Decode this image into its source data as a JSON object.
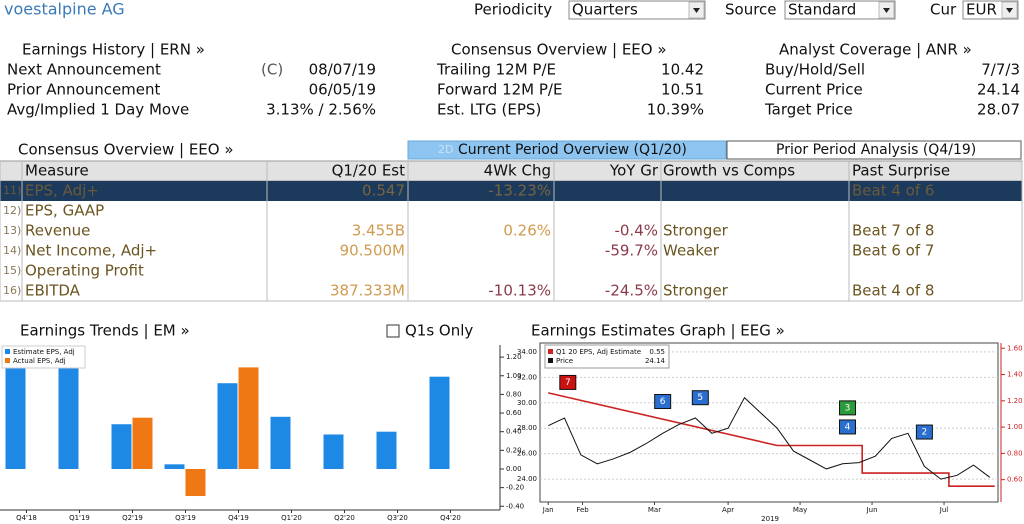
{
  "header": {
    "company": "voestalpine AG",
    "periodicity_label": "Periodicity",
    "periodicity": "Quarters",
    "source_label": "Source",
    "source": "Standard",
    "cur_label": "Cur",
    "cur": "EUR"
  },
  "panels": [
    {
      "title": "Earnings History | ERN »",
      "rows": [
        [
          "Next Announcement",
          "(C)",
          "08/07/19"
        ],
        [
          "Prior Announcement",
          "06/05/19"
        ],
        [
          "Avg/Implied 1 Day Move",
          "3.13% / 2.56%"
        ]
      ]
    },
    {
      "title": "Consensus Overview | EEO »",
      "rows": [
        [
          "Trailing 12M P/E",
          "10.42"
        ],
        [
          "Forward 12M P/E",
          "10.51"
        ],
        [
          "Est. LTG (EPS)",
          "10.39%"
        ]
      ]
    },
    {
      "title": "Analyst Coverage | ANR »",
      "rows": [
        [
          "Buy/Hold/Sell",
          "7/7/3"
        ],
        [
          "Current Price",
          "24.14"
        ],
        [
          "Target Price",
          "28.07"
        ]
      ]
    }
  ],
  "table": {
    "title": "Consensus Overview | EEO »",
    "tab_prefix": "2D",
    "tabs": [
      "Current Period Overview (Q1/20)",
      "Prior Period Analysis (Q4/19)"
    ],
    "columns": [
      "Measure",
      "Q1/20 Est",
      "4Wk Chg",
      "YoY Gr",
      "Growth vs Comps",
      "Past Surprise"
    ],
    "rows": [
      [
        "11)",
        "EPS, Adj+",
        "0.547",
        "-13.23%",
        null,
        null,
        "Beat 4 of 6"
      ],
      [
        "12)",
        "EPS, GAAP",
        null,
        null,
        null,
        null,
        null
      ],
      [
        "13)",
        "Revenue",
        "3.455B",
        "0.26%",
        "-0.4%",
        "Stronger",
        "Beat 7 of 8"
      ],
      [
        "14)",
        "Net Income, Adj+",
        "90.500M",
        null,
        "-59.7%",
        "Weaker",
        "Beat 6 of 7"
      ],
      [
        "15)",
        "Operating Profit",
        null,
        null,
        null,
        null,
        null
      ],
      [
        "16)",
        "EBITDA",
        "387.333M",
        "-10.13%",
        "-24.5%",
        "Stronger",
        "Beat 4 of 8"
      ]
    ]
  },
  "chart_data": [
    {
      "type": "bar",
      "title": "Earnings Trends | EM »",
      "checkbox": "Q1s Only",
      "categories": [
        "Q4'18",
        "Q1'19",
        "Q2'19",
        "Q3'19",
        "Q4'19",
        "Q1'20",
        "Q2'20",
        "Q3'20",
        "Q4'20"
      ],
      "series": [
        {
          "name": "Estimate EPS, Adj",
          "color": "#1e88e5",
          "values": [
            1.28,
            1.28,
            0.48,
            0.05,
            0.92,
            0.56,
            0.37,
            0.4,
            0.99
          ]
        },
        {
          "name": "Actual EPS, Adj",
          "color": "#f07814",
          "values": [
            null,
            null,
            0.55,
            -0.29,
            1.09,
            null,
            null,
            null,
            null
          ]
        }
      ],
      "ylim": [
        -0.44,
        1.33
      ],
      "yticks": [
        {
          "value": -0.4,
          "label": "-0.40"
        },
        {
          "value": -0.2,
          "label": "-0.20"
        },
        {
          "value": 0,
          "label": "0.00"
        },
        {
          "value": 0.2,
          "label": "0.20"
        },
        {
          "value": 0.4,
          "label": "0.40"
        },
        {
          "value": 0.6,
          "label": "0.60"
        },
        {
          "value": 0.8,
          "label": "0.80"
        },
        {
          "value": 1.0,
          "label": "1.00"
        },
        {
          "value": 1.2,
          "label": "1.20"
        }
      ],
      "axis_side": "right"
    },
    {
      "type": "line",
      "title": "Earnings Estimates Graph | EEG »",
      "x_label": "2019",
      "xlim": [
        -0.5,
        27.5
      ],
      "xticks": [
        {
          "value": 0,
          "label": "Jan"
        },
        {
          "value": 2.1,
          "label": "Feb"
        },
        {
          "value": 6.5,
          "label": "Mar"
        },
        {
          "value": 11,
          "label": "Apr"
        },
        {
          "value": 15.4,
          "label": "May"
        },
        {
          "value": 19.8,
          "label": "Jun"
        },
        {
          "value": 24.2,
          "label": "Jul"
        }
      ],
      "ylim": [
        22.2,
        34.7
      ],
      "yticks": [
        {
          "value": 24,
          "label": "24.00"
        },
        {
          "value": 26,
          "label": "26.00"
        },
        {
          "value": 28,
          "label": "28.00"
        },
        {
          "value": 30,
          "label": "30.00"
        },
        {
          "value": 32,
          "label": "32.00"
        },
        {
          "value": 34,
          "label": "34.00"
        }
      ],
      "y2lim": [
        0.43,
        1.64
      ],
      "y2ticks": [
        {
          "value": 0.6,
          "label": "0.60"
        },
        {
          "value": 0.8,
          "label": "0.80"
        },
        {
          "value": 1.0,
          "label": "1.00"
        },
        {
          "value": 1.2,
          "label": "1.20"
        },
        {
          "value": 1.4,
          "label": "1.40"
        },
        {
          "value": 1.6,
          "label": "1.60"
        }
      ],
      "series": [
        {
          "name": "Q1 20 EPS, Adj Estimate",
          "color": "#cc2222",
          "axis": "y2",
          "legend_value": "0.55",
          "x": [
            0,
            14,
            19.2,
            19.2,
            24.5,
            24.5,
            27.3
          ],
          "values": [
            1.26,
            0.86,
            0.86,
            0.65,
            0.65,
            0.55,
            0.55
          ]
        },
        {
          "name": "Price",
          "color": "#111111",
          "legend_value": "24.14",
          "x": [
            0,
            1,
            2,
            3,
            4,
            5,
            6,
            7,
            8,
            9,
            10,
            11,
            12,
            13,
            14,
            15,
            16,
            17,
            18,
            19,
            20,
            21,
            22,
            23,
            24,
            25,
            26,
            27
          ],
          "values": [
            28.2,
            28.8,
            25.9,
            25.2,
            25.6,
            26.1,
            26.8,
            27.6,
            28.3,
            28.8,
            27.6,
            28.0,
            30.4,
            29.2,
            28.0,
            26.2,
            25.5,
            24.8,
            25.2,
            25.3,
            25.8,
            27.2,
            27.6,
            25.0,
            24.0,
            24.3,
            25.1,
            24.14
          ]
        }
      ],
      "annotations": [
        {
          "label": "7",
          "x": 1.2,
          "y": 31.6,
          "color": "#cc1111"
        },
        {
          "label": "6",
          "x": 7,
          "y": 30.1,
          "color": "#2a6fd0"
        },
        {
          "label": "5",
          "x": 9.3,
          "y": 30.4,
          "color": "#2a6fd0"
        },
        {
          "label": "3",
          "x": 18.3,
          "y": 29.6,
          "color": "#2a9a3a"
        },
        {
          "label": "4",
          "x": 18.3,
          "y": 28.1,
          "color": "#2a6fd0"
        },
        {
          "label": "2",
          "x": 23,
          "y": 27.7,
          "color": "#2a6fd0"
        }
      ]
    }
  ]
}
